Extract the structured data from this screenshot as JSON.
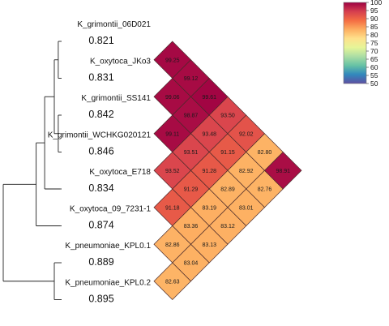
{
  "chart_data": {
    "type": "heatmap",
    "title": "",
    "subtitle": "",
    "layout": "triangular-diamond",
    "strains": [
      {
        "label": "K_grimontii_06D021",
        "score": "0.821"
      },
      {
        "label": "K_oxytoca_JKo3",
        "score": "0.831"
      },
      {
        "label": "K_grimontii_SS141",
        "score": "0.842"
      },
      {
        "label": "K_grimontii_WCHKG020121",
        "score": "0.846"
      },
      {
        "label": "K_oxytoca_E718",
        "score": "0.834"
      },
      {
        "label": "K_oxytoca_09_7231-1",
        "score": "0.874"
      },
      {
        "label": "K_pneumoniae_KPL0.1",
        "score": "0.889"
      },
      {
        "label": "K_pneumoniae_KPL0.2",
        "score": "0.895"
      }
    ],
    "pairwise": [
      {
        "i": 0,
        "j": 1,
        "value": 99.25
      },
      {
        "i": 1,
        "j": 2,
        "value": 99.06
      },
      {
        "i": 0,
        "j": 2,
        "value": 99.12
      },
      {
        "i": 1,
        "j": 3,
        "value": 98.87
      },
      {
        "i": 2,
        "j": 3,
        "value": 99.11
      },
      {
        "i": 1,
        "j": 4,
        "value": 93.48
      },
      {
        "i": 0,
        "j": 3,
        "value": 99.61
      },
      {
        "i": 2,
        "j": 4,
        "value": 93.51
      },
      {
        "i": 1,
        "j": 5,
        "value": 91.15
      },
      {
        "i": 3,
        "j": 4,
        "value": 93.52
      },
      {
        "i": 2,
        "j": 5,
        "value": 91.28
      },
      {
        "i": 1,
        "j": 6,
        "value": 82.92
      },
      {
        "i": 0,
        "j": 4,
        "value": 93.5
      },
      {
        "i": 3,
        "j": 5,
        "value": 91.29
      },
      {
        "i": 2,
        "j": 6,
        "value": 82.89
      },
      {
        "i": 1,
        "j": 7,
        "value": 82.76
      },
      {
        "i": 4,
        "j": 5,
        "value": 91.18
      },
      {
        "i": 3,
        "j": 6,
        "value": 83.19
      },
      {
        "i": 2,
        "j": 7,
        "value": 83.01
      },
      {
        "i": 0,
        "j": 5,
        "value": 92.02
      },
      {
        "i": 4,
        "j": 6,
        "value": 83.36
      },
      {
        "i": 3,
        "j": 7,
        "value": 83.12
      },
      {
        "i": 5,
        "j": 6,
        "value": 82.86
      },
      {
        "i": 4,
        "j": 7,
        "value": 83.13
      },
      {
        "i": 0,
        "j": 6,
        "value": 82.8
      },
      {
        "i": 5,
        "j": 7,
        "value": 83.04
      },
      {
        "i": 6,
        "j": 7,
        "value": 82.63
      },
      {
        "i": 0,
        "j": 7,
        "value": 98.91
      }
    ],
    "colorbar": {
      "ticks": [
        100,
        95,
        90,
        85,
        80,
        75,
        70,
        65,
        60,
        55,
        50
      ],
      "range": [
        50,
        100
      ],
      "palette": [
        "#5e4fa2",
        "#3288bd",
        "#66c2a5",
        "#abdda4",
        "#e6f598",
        "#fee08b",
        "#fdae61",
        "#f46d43",
        "#d53e4f",
        "#9e0142"
      ]
    },
    "dendrogram": {
      "merges": [
        {
          "a": 0,
          "b": 1,
          "height": 0.03
        },
        {
          "a": 2,
          "b": 3,
          "height": 0.03
        },
        {
          "a": "m0",
          "b": "m1",
          "height": 0.1
        },
        {
          "a": "m2",
          "b": 4,
          "height": 0.27
        },
        {
          "a": "m3",
          "b": 5,
          "height": 0.42
        },
        {
          "a": 6,
          "b": 7,
          "height": 0.1
        },
        {
          "a": "m4",
          "b": "m5",
          "height": 1.0
        }
      ]
    }
  }
}
